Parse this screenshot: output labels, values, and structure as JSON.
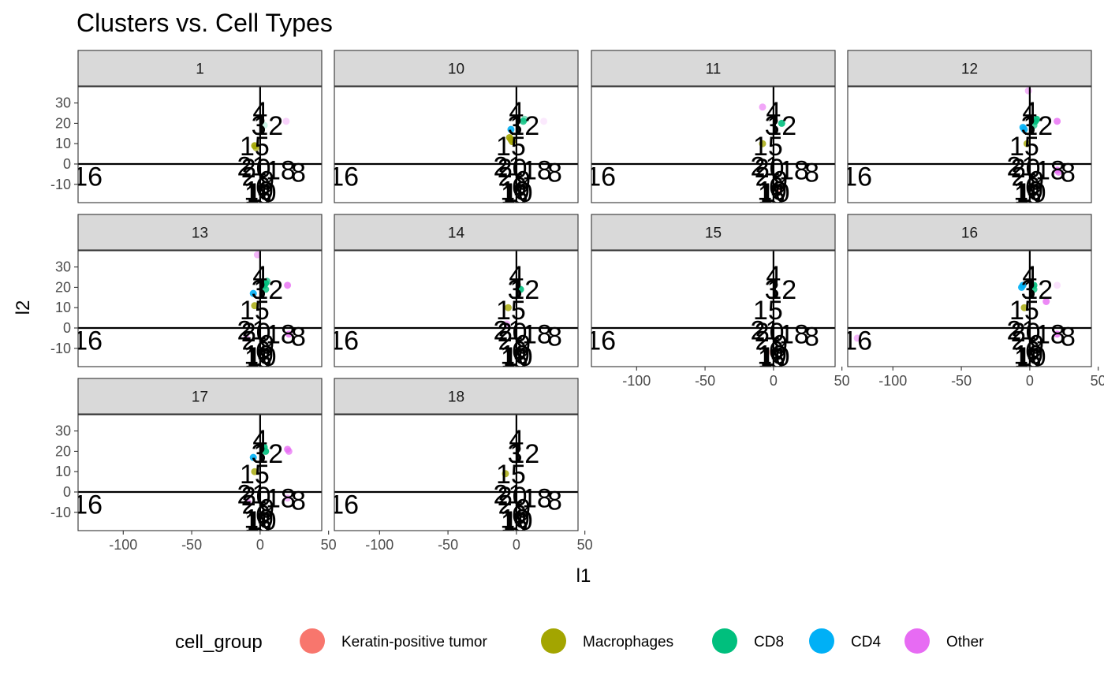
{
  "chart_data": {
    "type": "scatter",
    "title": "Clusters vs. Cell Types",
    "xlabel": "l1",
    "ylabel": "l2",
    "xlim": [
      -133,
      45
    ],
    "ylim": [
      -19,
      38
    ],
    "x_ticks": [
      -100,
      -50,
      0,
      50
    ],
    "y_ticks": [
      -10,
      0,
      10,
      20,
      30
    ],
    "x_tick_labels": [
      "-100",
      "-50",
      "0",
      "50"
    ],
    "y_tick_labels": [
      "-10",
      "0",
      "10",
      "20",
      "30"
    ],
    "reference_lines": {
      "x": 0,
      "y": 0
    },
    "grid": false,
    "legend_position": "bottom",
    "legend": {
      "title": "cell_group",
      "items": [
        {
          "name": "Keratin-positive tumor",
          "color": "#F8766D"
        },
        {
          "name": "Macrophages",
          "color": "#A3A500"
        },
        {
          "name": "CD8",
          "color": "#00BF7D"
        },
        {
          "name": "CD4",
          "color": "#00B0F6"
        },
        {
          "name": "Other",
          "color": "#E76BF3"
        }
      ]
    },
    "cluster_labels": [
      {
        "text": "4",
        "x": 0,
        "y": 26
      },
      {
        "text": "3",
        "x": -1,
        "y": 19
      },
      {
        "text": "12",
        "x": 6,
        "y": 19
      },
      {
        "text": "15",
        "x": -4,
        "y": 9
      },
      {
        "text": "16",
        "x": -126,
        "y": -6
      },
      {
        "text": "21",
        "x": -6,
        "y": -1
      },
      {
        "text": "20",
        "x": -3,
        "y": -2
      },
      {
        "text": "18",
        "x": 15,
        "y": -3
      },
      {
        "text": "8",
        "x": 28,
        "y": -4
      },
      {
        "text": "2",
        "x": -8,
        "y": -6
      },
      {
        "text": "9",
        "x": 5,
        "y": -8
      },
      {
        "text": "6",
        "x": 2,
        "y": -11
      },
      {
        "text": "19",
        "x": -1,
        "y": -13
      },
      {
        "text": "10",
        "x": 1,
        "y": -14
      },
      {
        "text": "1",
        "x": -6,
        "y": -15
      },
      {
        "text": "5",
        "x": 3,
        "y": -15
      }
    ],
    "panels": [
      {
        "label": "1",
        "points": [
          {
            "x": -4,
            "y": 9,
            "group": "Macrophages",
            "alpha": 0.9
          },
          {
            "x": -3,
            "y": 8,
            "group": "Macrophages",
            "alpha": 0.7
          },
          {
            "x": 3,
            "y": 19,
            "group": "CD8",
            "alpha": 0.2
          },
          {
            "x": 19,
            "y": 21,
            "group": "Other",
            "alpha": 0.3
          }
        ]
      },
      {
        "label": "10",
        "points": [
          {
            "x": -4,
            "y": 12,
            "group": "Macrophages",
            "alpha": 0.9
          },
          {
            "x": -3,
            "y": 11,
            "group": "Macrophages",
            "alpha": 0.9
          },
          {
            "x": -5,
            "y": 13,
            "group": "Macrophages",
            "alpha": 0.9
          },
          {
            "x": -4,
            "y": 17,
            "group": "CD4",
            "alpha": 0.9
          },
          {
            "x": 5,
            "y": 21,
            "group": "CD8",
            "alpha": 0.8
          },
          {
            "x": 6,
            "y": 22,
            "group": "CD8",
            "alpha": 0.5
          },
          {
            "x": 20,
            "y": 21,
            "group": "Other",
            "alpha": 0.15
          }
        ]
      },
      {
        "label": "11",
        "points": [
          {
            "x": -8,
            "y": 28,
            "group": "Other",
            "alpha": 0.6
          },
          {
            "x": -8,
            "y": 10,
            "group": "Macrophages",
            "alpha": 0.8
          },
          {
            "x": 6,
            "y": 20,
            "group": "CD8",
            "alpha": 0.9
          },
          {
            "x": 5,
            "y": -12,
            "group": "Keratin-positive tumor",
            "alpha": 0.5
          }
        ]
      },
      {
        "label": "12",
        "points": [
          {
            "x": -1,
            "y": 36,
            "group": "Other",
            "alpha": 0.5
          },
          {
            "x": -2,
            "y": 10,
            "group": "Macrophages",
            "alpha": 0.8
          },
          {
            "x": -5,
            "y": 18,
            "group": "CD4",
            "alpha": 0.9
          },
          {
            "x": -4,
            "y": 17,
            "group": "CD4",
            "alpha": 0.9
          },
          {
            "x": 4,
            "y": 21,
            "group": "CD8",
            "alpha": 0.9
          },
          {
            "x": 5,
            "y": 22,
            "group": "CD8",
            "alpha": 0.9
          },
          {
            "x": 3,
            "y": 19,
            "group": "CD8",
            "alpha": 0.7
          },
          {
            "x": 20,
            "y": 21,
            "group": "Other",
            "alpha": 0.8
          },
          {
            "x": 20,
            "y": -3,
            "group": "Other",
            "alpha": 0.8
          },
          {
            "x": 21,
            "y": -4,
            "group": "Other",
            "alpha": 0.7
          }
        ]
      },
      {
        "label": "13",
        "points": [
          {
            "x": -2,
            "y": 36,
            "group": "Other",
            "alpha": 0.5
          },
          {
            "x": -4,
            "y": 11,
            "group": "Macrophages",
            "alpha": 0.8
          },
          {
            "x": -5,
            "y": 17,
            "group": "CD4",
            "alpha": 0.9
          },
          {
            "x": 3,
            "y": 21,
            "group": "CD8",
            "alpha": 0.9
          },
          {
            "x": 4,
            "y": 22,
            "group": "CD8",
            "alpha": 0.9
          },
          {
            "x": 4,
            "y": 19,
            "group": "CD8",
            "alpha": 0.8
          },
          {
            "x": 5,
            "y": 23,
            "group": "CD8",
            "alpha": 0.7
          },
          {
            "x": 20,
            "y": 21,
            "group": "Other",
            "alpha": 0.8
          },
          {
            "x": 21,
            "y": -3,
            "group": "Other",
            "alpha": 0.8
          },
          {
            "x": -10,
            "y": -5,
            "group": "Other",
            "alpha": 0.6
          }
        ]
      },
      {
        "label": "14",
        "points": [
          {
            "x": -6,
            "y": 10,
            "group": "Macrophages",
            "alpha": 0.8
          },
          {
            "x": 3,
            "y": 19,
            "group": "CD8",
            "alpha": 0.9
          },
          {
            "x": -7,
            "y": 2,
            "group": "Other",
            "alpha": 0.5
          }
        ]
      },
      {
        "label": "15",
        "points": [
          {
            "x": -1,
            "y": -12,
            "group": "Keratin-positive tumor",
            "alpha": 0.4
          }
        ]
      },
      {
        "label": "16",
        "points": [
          {
            "x": -6,
            "y": 20,
            "group": "CD4",
            "alpha": 0.9
          },
          {
            "x": -5,
            "y": 21,
            "group": "CD4",
            "alpha": 0.9
          },
          {
            "x": -4,
            "y": 10,
            "group": "Macrophages",
            "alpha": 0.8
          },
          {
            "x": 3,
            "y": 21,
            "group": "CD8",
            "alpha": 0.9
          },
          {
            "x": 3,
            "y": 19,
            "group": "CD8",
            "alpha": 0.8
          },
          {
            "x": 20,
            "y": 21,
            "group": "Other",
            "alpha": 0.2
          },
          {
            "x": 12,
            "y": 13,
            "group": "Other",
            "alpha": 0.8
          },
          {
            "x": 20,
            "y": -3,
            "group": "Other",
            "alpha": 0.8
          },
          {
            "x": -126,
            "y": -5,
            "group": "Other",
            "alpha": 0.5
          }
        ]
      },
      {
        "label": "17",
        "points": [
          {
            "x": -4,
            "y": 10,
            "group": "Macrophages",
            "alpha": 0.8
          },
          {
            "x": -5,
            "y": 17,
            "group": "CD4",
            "alpha": 0.9
          },
          {
            "x": 3,
            "y": 22,
            "group": "CD8",
            "alpha": 0.9
          },
          {
            "x": 4,
            "y": 20,
            "group": "CD8",
            "alpha": 0.9
          },
          {
            "x": 20,
            "y": 21,
            "group": "Other",
            "alpha": 0.8
          },
          {
            "x": 21,
            "y": 20,
            "group": "Other",
            "alpha": 0.7
          },
          {
            "x": -9,
            "y": -5,
            "group": "Other",
            "alpha": 0.6
          },
          {
            "x": 20,
            "y": -3,
            "group": "Other",
            "alpha": 0.5
          }
        ]
      },
      {
        "label": "18",
        "points": [
          {
            "x": -8,
            "y": 9,
            "group": "Macrophages",
            "alpha": 0.8
          }
        ]
      }
    ]
  }
}
